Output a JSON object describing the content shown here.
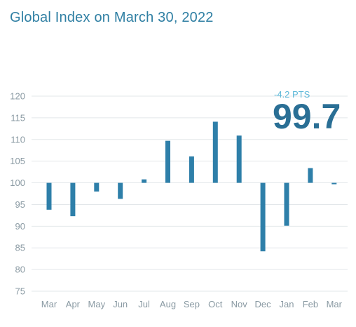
{
  "header": {
    "title": "Global Index on March 30, 2022"
  },
  "callout": {
    "change": "-4.2 PTS",
    "value": "99.7"
  },
  "colors": {
    "bar": "#2e7fa9",
    "title": "#2f7fa3",
    "value": "#2a6f95",
    "change": "#5db8d8",
    "grid": "#e3e7ea"
  },
  "chart_data": {
    "type": "bar",
    "title": "Global Index on March 30, 2022",
    "xlabel": "",
    "ylabel": "",
    "baseline": 100,
    "ylim": [
      75,
      120
    ],
    "yticks": [
      120,
      115,
      110,
      105,
      100,
      95,
      90,
      85,
      80,
      75
    ],
    "grid": true,
    "categories": [
      "Mar",
      "Apr",
      "May",
      "Jun",
      "Jul",
      "Aug",
      "Sep",
      "Oct",
      "Nov",
      "Dec",
      "Jan",
      "Feb",
      "Mar"
    ],
    "values": [
      93.8,
      92.3,
      98.0,
      96.3,
      100.8,
      109.7,
      106.1,
      114.1,
      110.9,
      84.2,
      90.1,
      103.4,
      99.7
    ]
  }
}
